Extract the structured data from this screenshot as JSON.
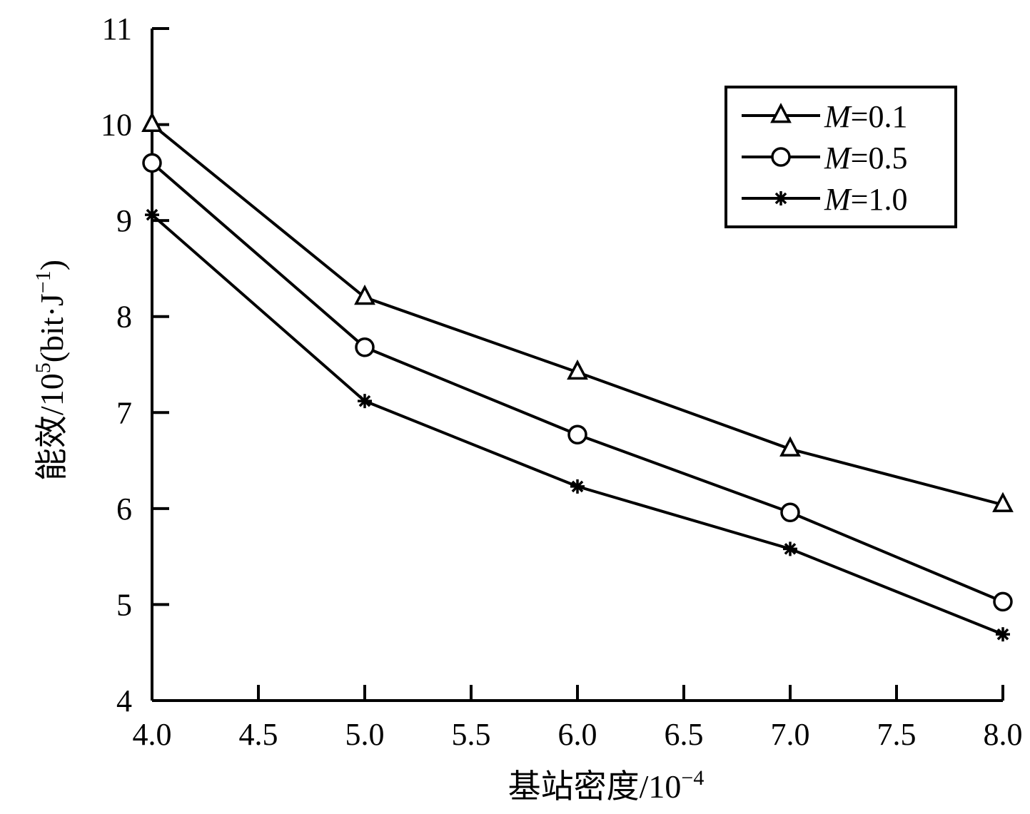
{
  "chart_data": {
    "type": "line",
    "title": "",
    "xlabel": "基站密度/10",
    "xlabel_exponent": "−4",
    "ylabel": "能效/10",
    "ylabel_exponent": "5",
    "ylabel_unit_open": "(bit·J",
    "ylabel_unit_exponent": "−1",
    "ylabel_unit_close": ")",
    "xlim": [
      4.0,
      8.0
    ],
    "ylim": [
      4,
      11
    ],
    "x_ticks": [
      "4.0",
      "4.5",
      "5.0",
      "5.5",
      "6.0",
      "6.5",
      "7.0",
      "7.5",
      "8.0"
    ],
    "y_ticks": [
      "4",
      "5",
      "6",
      "7",
      "8",
      "9",
      "10",
      "11"
    ],
    "x": [
      4.0,
      5.0,
      6.0,
      7.0,
      8.0
    ],
    "series": [
      {
        "name_var": "M",
        "name_rest": "=0.1",
        "marker": "triangle",
        "values": [
          10.0,
          8.2,
          7.42,
          6.62,
          6.04
        ]
      },
      {
        "name_var": "M",
        "name_rest": "=0.5",
        "marker": "circle",
        "values": [
          9.6,
          7.68,
          6.77,
          5.96,
          5.03
        ]
      },
      {
        "name_var": "M",
        "name_rest": "=1.0",
        "marker": "asterisk",
        "values": [
          9.06,
          7.12,
          6.23,
          5.58,
          4.69
        ]
      }
    ],
    "legend_position": "top-right",
    "grid": false,
    "line_color": "#000000"
  }
}
